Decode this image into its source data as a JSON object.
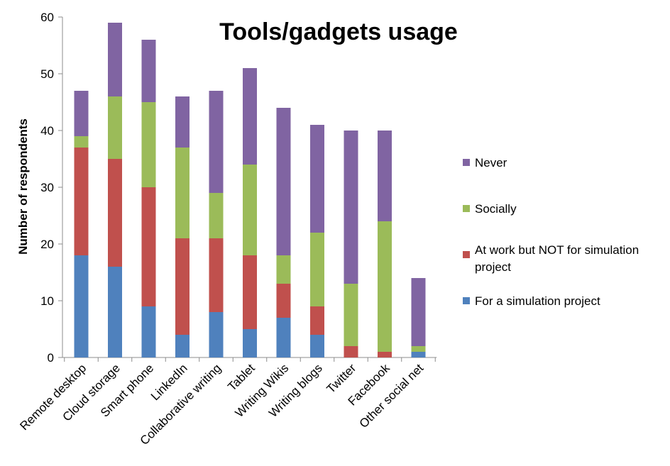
{
  "chart_data": {
    "type": "bar",
    "stacked": true,
    "title": "Tools/gadgets usage",
    "xlabel": "",
    "ylabel": "Number of respondents",
    "ylim": [
      0,
      60
    ],
    "yticks": [
      0,
      10,
      20,
      30,
      40,
      50,
      60
    ],
    "grid": false,
    "legend_position": "right",
    "categories": [
      "Remote desktop",
      "Cloud storage",
      "Smart phone",
      "LinkedIn",
      "Collaborative writing",
      "Tablet",
      "Writing Wikis",
      "Writing blogs",
      "Twitter",
      "Facebook",
      "Other social net"
    ],
    "series": [
      {
        "name": "For a simulation project",
        "color": "#4f81bd",
        "values": [
          18,
          16,
          9,
          4,
          8,
          5,
          7,
          4,
          0,
          0,
          1
        ]
      },
      {
        "name": "At work but NOT for simulation project",
        "color": "#c0504d",
        "values": [
          19,
          19,
          21,
          17,
          13,
          13,
          6,
          5,
          2,
          1,
          0
        ]
      },
      {
        "name": "Socially",
        "color": "#9bbb59",
        "values": [
          2,
          11,
          15,
          16,
          8,
          16,
          5,
          13,
          11,
          23,
          1
        ]
      },
      {
        "name": "Never",
        "color": "#8064a2",
        "values": [
          8,
          13,
          11,
          9,
          18,
          17,
          26,
          19,
          27,
          16,
          12
        ]
      }
    ],
    "legend_order": [
      "Never",
      "Socially",
      "At work but NOT for simulation project",
      "For a simulation project"
    ]
  }
}
